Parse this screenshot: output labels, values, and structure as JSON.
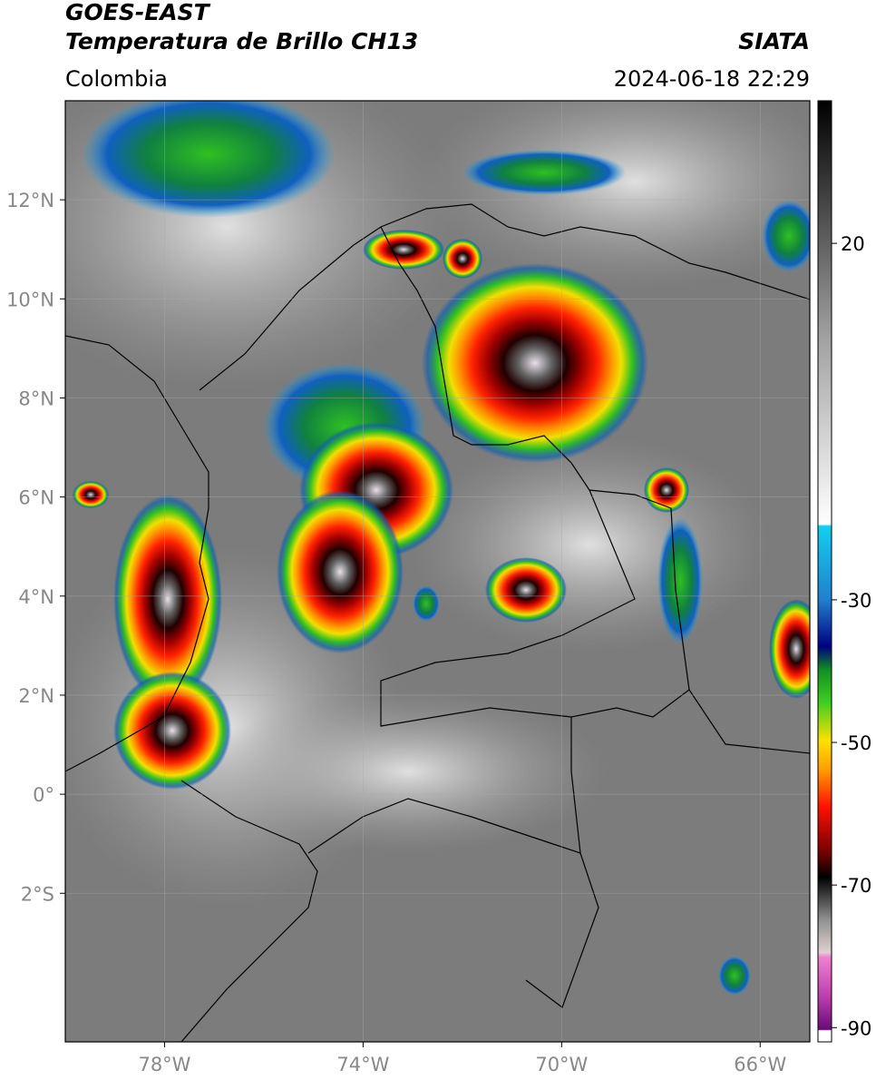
{
  "header": {
    "satellite": "GOES-EAST",
    "product": "Temperatura de Brillo CH13",
    "agency": "SIATA",
    "region": "Colombia",
    "datetime": "2024-06-18 22:29"
  },
  "map": {
    "lonlim": [
      -80,
      -65
    ],
    "latlim": [
      -5,
      14
    ],
    "lonticks": [
      {
        "value": -78,
        "label": "78°W"
      },
      {
        "value": -74,
        "label": "74°W"
      },
      {
        "value": -70,
        "label": "70°W"
      },
      {
        "value": -66,
        "label": "66°W"
      }
    ],
    "latticks": [
      {
        "value": 12,
        "label": "12°N"
      },
      {
        "value": 10,
        "label": "10°N"
      },
      {
        "value": 8,
        "label": "8°N"
      },
      {
        "value": 6,
        "label": "6°N"
      },
      {
        "value": 4,
        "label": "4°N"
      },
      {
        "value": 2,
        "label": "2°N"
      },
      {
        "value": 0,
        "label": "0°"
      },
      {
        "value": -2,
        "label": "2°S"
      }
    ],
    "grid": true
  },
  "colorbar": {
    "lim": [
      -92,
      40
    ],
    "ticks": [
      20,
      -30,
      -50,
      -70,
      -90
    ]
  }
}
